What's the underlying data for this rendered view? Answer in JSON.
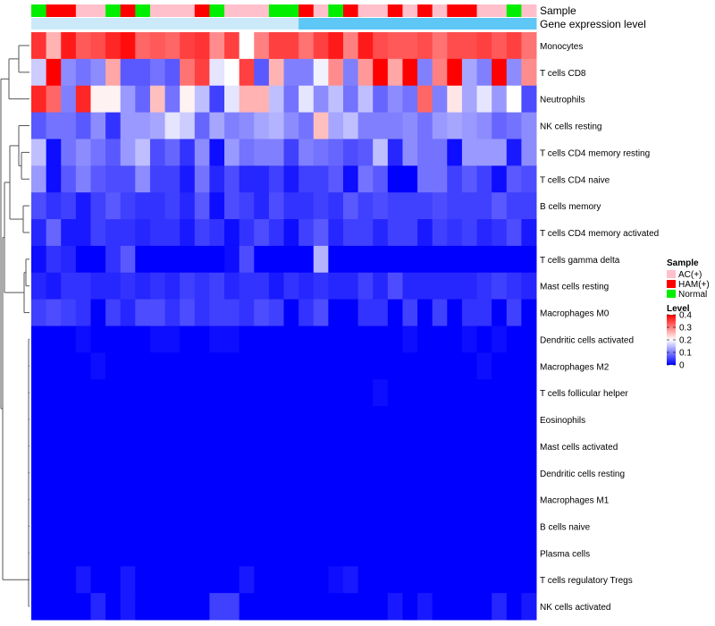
{
  "chart_data": {
    "type": "heatmap",
    "title": "",
    "rows": [
      "Monocytes",
      "T cells CD8",
      "Neutrophils",
      "NK cells resting",
      "T cells CD4 memory resting",
      "T cells CD4 naive",
      "B cells memory",
      "T cells CD4 memory activated",
      "T cells gamma delta",
      "Mast cells resting",
      "Macrophages M0",
      "Dendritic cells activated",
      "Macrophages M2",
      "T cells follicular helper",
      "Eosinophils",
      "Mast cells activated",
      "Dendritic cells resting",
      "Macrophages M1",
      "B cells naive",
      "Plasma cells",
      "T cells regulatory  Tregs",
      "NK cells activated"
    ],
    "annotation_tracks": [
      {
        "name": "Sample",
        "values": [
          "Normal",
          "HAM(+)",
          "HAM(+)",
          "AC(+)",
          "AC(+)",
          "Normal",
          "HAM(+)",
          "Normal",
          "AC(+)",
          "AC(+)",
          "AC(+)",
          "HAM(+)",
          "Normal",
          "AC(+)",
          "AC(+)",
          "AC(+)",
          "Normal",
          "Normal",
          "HAM(+)",
          "AC(+)",
          "Normal",
          "HAM(+)",
          "AC(+)",
          "AC(+)",
          "HAM(+)",
          "AC(+)",
          "HAM(+)",
          "AC(+)",
          "HAM(+)",
          "HAM(+)",
          "AC(+)",
          "AC(+)",
          "Normal",
          "AC(+)"
        ]
      },
      {
        "name": "Gene expression level",
        "values": [
          "low",
          "low",
          "low",
          "low",
          "low",
          "low",
          "low",
          "low",
          "low",
          "low",
          "low",
          "low",
          "low",
          "low",
          "low",
          "low",
          "low",
          "low",
          "high",
          "high",
          "high",
          "high",
          "high",
          "high",
          "high",
          "high",
          "high",
          "high",
          "high",
          "high",
          "high",
          "high",
          "high",
          "high"
        ]
      }
    ],
    "matrix": [
      [
        0.36,
        0.26,
        0.38,
        0.33,
        0.34,
        0.37,
        0.39,
        0.32,
        0.33,
        0.32,
        0.35,
        0.36,
        0.29,
        0.35,
        0.2,
        0.3,
        0.35,
        0.35,
        0.31,
        0.35,
        0.38,
        0.3,
        0.38,
        0.34,
        0.33,
        0.33,
        0.34,
        0.31,
        0.34,
        0.34,
        0.35,
        0.33,
        0.35,
        0.31
      ],
      [
        0.16,
        0.4,
        0.11,
        0.09,
        0.11,
        0.27,
        0.07,
        0.07,
        0.09,
        0.07,
        0.31,
        0.35,
        0.18,
        0.2,
        0.35,
        0.07,
        0.26,
        0.1,
        0.1,
        0.19,
        0.29,
        0.1,
        0.28,
        0.42,
        0.27,
        0.41,
        0.1,
        0.3,
        0.41,
        0.13,
        0.1,
        0.4,
        0.11,
        0.29
      ],
      [
        0.37,
        0.32,
        0.1,
        0.37,
        0.21,
        0.21,
        0.12,
        0.08,
        0.25,
        0.09,
        0.21,
        0.15,
        0.05,
        0.18,
        0.26,
        0.26,
        0.15,
        0.09,
        0.18,
        0.11,
        0.15,
        0.09,
        0.15,
        0.08,
        0.11,
        0.09,
        0.32,
        0.1,
        0.22,
        0.13,
        0.18,
        0.12,
        0.2,
        0.06
      ],
      [
        0.07,
        0.09,
        0.09,
        0.07,
        0.11,
        0.04,
        0.12,
        0.12,
        0.13,
        0.18,
        0.16,
        0.08,
        0.13,
        0.1,
        0.11,
        0.13,
        0.14,
        0.11,
        0.09,
        0.25,
        0.13,
        0.15,
        0.1,
        0.1,
        0.1,
        0.11,
        0.09,
        0.12,
        0.13,
        0.12,
        0.11,
        0.08,
        0.09,
        0.11
      ],
      [
        0.15,
        0.01,
        0.09,
        0.11,
        0.09,
        0.07,
        0.12,
        0.15,
        0.06,
        0.08,
        0.04,
        0.11,
        0.01,
        0.12,
        0.09,
        0.1,
        0.1,
        0.05,
        0.1,
        0.09,
        0.08,
        0.06,
        0.07,
        0.15,
        0.03,
        0.11,
        0.09,
        0.09,
        0.01,
        0.12,
        0.12,
        0.12,
        0.02,
        0.11
      ],
      [
        0.12,
        0.01,
        0.07,
        0.1,
        0.07,
        0.06,
        0.06,
        0.11,
        0.05,
        0.05,
        0.02,
        0.09,
        0.03,
        0.06,
        0.03,
        0.03,
        0.05,
        0.02,
        0.05,
        0.05,
        0.07,
        0.01,
        0.09,
        0.07,
        0.0,
        0.0,
        0.09,
        0.09,
        0.05,
        0.07,
        0.05,
        0.01,
        0.07,
        0.06
      ],
      [
        0.06,
        0.04,
        0.05,
        0.02,
        0.05,
        0.07,
        0.05,
        0.04,
        0.04,
        0.05,
        0.03,
        0.07,
        0.01,
        0.06,
        0.05,
        0.03,
        0.06,
        0.04,
        0.04,
        0.05,
        0.04,
        0.07,
        0.05,
        0.06,
        0.05,
        0.05,
        0.05,
        0.06,
        0.05,
        0.05,
        0.05,
        0.07,
        0.05,
        0.05
      ],
      [
        0.03,
        0.08,
        0.02,
        0.02,
        0.05,
        0.04,
        0.04,
        0.03,
        0.04,
        0.04,
        0.02,
        0.05,
        0.04,
        0.01,
        0.04,
        0.06,
        0.04,
        0.01,
        0.05,
        0.07,
        0.03,
        0.05,
        0.05,
        0.03,
        0.05,
        0.05,
        0.02,
        0.05,
        0.04,
        0.05,
        0.03,
        0.04,
        0.06,
        0.02
      ],
      [
        0.01,
        0.04,
        0.03,
        0.0,
        0.0,
        0.04,
        0.07,
        0.0,
        0.0,
        0.0,
        0.0,
        0.0,
        0.0,
        0.01,
        0.06,
        0.0,
        0.0,
        0.0,
        0.0,
        0.14,
        0.0,
        0.0,
        0.0,
        0.0,
        0.0,
        0.0,
        0.0,
        0.0,
        0.0,
        0.0,
        0.0,
        0.0,
        0.0,
        0.0
      ],
      [
        0.03,
        0.02,
        0.04,
        0.04,
        0.03,
        0.03,
        0.04,
        0.03,
        0.04,
        0.03,
        0.05,
        0.04,
        0.05,
        0.03,
        0.04,
        0.04,
        0.02,
        0.04,
        0.03,
        0.04,
        0.03,
        0.03,
        0.05,
        0.03,
        0.06,
        0.03,
        0.03,
        0.03,
        0.03,
        0.03,
        0.04,
        0.05,
        0.04,
        0.03
      ],
      [
        0.05,
        0.06,
        0.05,
        0.04,
        0.0,
        0.05,
        0.03,
        0.06,
        0.06,
        0.04,
        0.06,
        0.04,
        0.05,
        0.05,
        0.04,
        0.06,
        0.05,
        0.0,
        0.04,
        0.06,
        0.0,
        0.0,
        0.04,
        0.04,
        0.0,
        0.05,
        0.0,
        0.05,
        0.0,
        0.04,
        0.04,
        0.0,
        0.05,
        0.0
      ],
      [
        0.0,
        0.0,
        0.0,
        0.01,
        0.0,
        0.0,
        0.0,
        0.0,
        0.01,
        0.01,
        0.0,
        0.0,
        0.01,
        0.01,
        0.0,
        0.0,
        0.0,
        0.0,
        0.0,
        0.0,
        0.0,
        0.0,
        0.0,
        0.0,
        0.0,
        0.01,
        0.0,
        0.0,
        0.0,
        0.01,
        0.0,
        0.01,
        0.0,
        0.0
      ],
      [
        0.0,
        0.0,
        0.0,
        0.0,
        0.01,
        0.0,
        0.0,
        0.0,
        0.0,
        0.0,
        0.0,
        0.0,
        0.0,
        0.0,
        0.0,
        0.0,
        0.0,
        0.0,
        0.0,
        0.0,
        0.0,
        0.0,
        0.0,
        0.0,
        0.0,
        0.0,
        0.0,
        0.0,
        0.0,
        0.0,
        0.01,
        0.0,
        0.0,
        0.0
      ],
      [
        0.0,
        0.0,
        0.0,
        0.0,
        0.0,
        0.0,
        0.0,
        0.0,
        0.0,
        0.0,
        0.0,
        0.0,
        0.0,
        0.0,
        0.0,
        0.0,
        0.0,
        0.0,
        0.0,
        0.0,
        0.0,
        0.0,
        0.0,
        0.01,
        0.0,
        0.0,
        0.0,
        0.0,
        0.0,
        0.0,
        0.0,
        0.0,
        0.0,
        0.0
      ],
      [
        0.0,
        0.0,
        0.0,
        0.0,
        0.0,
        0.0,
        0.0,
        0.0,
        0.0,
        0.0,
        0.0,
        0.0,
        0.0,
        0.0,
        0.0,
        0.0,
        0.0,
        0.0,
        0.0,
        0.0,
        0.0,
        0.0,
        0.0,
        0.0,
        0.0,
        0.0,
        0.0,
        0.0,
        0.0,
        0.0,
        0.0,
        0.0,
        0.0,
        0.0
      ],
      [
        0.0,
        0.0,
        0.0,
        0.0,
        0.0,
        0.0,
        0.0,
        0.0,
        0.0,
        0.0,
        0.0,
        0.0,
        0.0,
        0.0,
        0.0,
        0.0,
        0.0,
        0.0,
        0.0,
        0.0,
        0.0,
        0.0,
        0.0,
        0.0,
        0.0,
        0.0,
        0.0,
        0.0,
        0.0,
        0.0,
        0.0,
        0.0,
        0.0,
        0.0
      ],
      [
        0.0,
        0.0,
        0.0,
        0.0,
        0.0,
        0.0,
        0.0,
        0.0,
        0.0,
        0.0,
        0.0,
        0.0,
        0.0,
        0.0,
        0.0,
        0.0,
        0.0,
        0.0,
        0.0,
        0.0,
        0.0,
        0.0,
        0.0,
        0.0,
        0.0,
        0.0,
        0.0,
        0.0,
        0.0,
        0.0,
        0.0,
        0.0,
        0.0,
        0.0
      ],
      [
        0.0,
        0.0,
        0.0,
        0.0,
        0.0,
        0.0,
        0.0,
        0.0,
        0.0,
        0.0,
        0.0,
        0.0,
        0.0,
        0.0,
        0.0,
        0.0,
        0.0,
        0.0,
        0.0,
        0.0,
        0.0,
        0.0,
        0.0,
        0.0,
        0.0,
        0.0,
        0.0,
        0.0,
        0.0,
        0.0,
        0.0,
        0.0,
        0.0,
        0.0
      ],
      [
        0.0,
        0.0,
        0.0,
        0.0,
        0.0,
        0.0,
        0.0,
        0.0,
        0.0,
        0.0,
        0.0,
        0.0,
        0.0,
        0.0,
        0.0,
        0.0,
        0.0,
        0.0,
        0.0,
        0.0,
        0.0,
        0.0,
        0.0,
        0.0,
        0.0,
        0.0,
        0.0,
        0.0,
        0.0,
        0.0,
        0.0,
        0.0,
        0.0,
        0.0
      ],
      [
        0.0,
        0.0,
        0.0,
        0.0,
        0.0,
        0.0,
        0.0,
        0.0,
        0.0,
        0.0,
        0.0,
        0.0,
        0.0,
        0.0,
        0.0,
        0.0,
        0.0,
        0.0,
        0.0,
        0.0,
        0.0,
        0.0,
        0.0,
        0.0,
        0.0,
        0.0,
        0.0,
        0.0,
        0.0,
        0.0,
        0.0,
        0.0,
        0.0,
        0.0
      ],
      [
        0.0,
        0.0,
        0.0,
        0.02,
        0.0,
        0.0,
        0.02,
        0.0,
        0.0,
        0.0,
        0.0,
        0.0,
        0.0,
        0.0,
        0.02,
        0.0,
        0.0,
        0.0,
        0.0,
        0.0,
        0.01,
        0.02,
        0.0,
        0.0,
        0.0,
        0.0,
        0.0,
        0.0,
        0.0,
        0.0,
        0.0,
        0.0,
        0.0,
        0.0
      ],
      [
        0.0,
        0.0,
        0.0,
        0.0,
        0.03,
        0.0,
        0.02,
        0.0,
        0.0,
        0.0,
        0.0,
        0.0,
        0.05,
        0.05,
        0.0,
        0.0,
        0.0,
        0.0,
        0.0,
        0.0,
        0.0,
        0.0,
        0.0,
        0.0,
        0.02,
        0.0,
        0.02,
        0.0,
        0.0,
        0.0,
        0.0,
        0.03,
        0.0,
        0.02
      ]
    ],
    "legend_sample": {
      "title": "Sample",
      "items": [
        {
          "label": "AC(+)",
          "color": "#ffc0cb"
        },
        {
          "label": "HAM(+)",
          "color": "#ff0000"
        },
        {
          "label": "Normal",
          "color": "#00ee00"
        }
      ]
    },
    "legend_level": {
      "title": "Level",
      "ticks": [
        {
          "value": 0.4,
          "label": "0.4"
        },
        {
          "value": 0.3,
          "label": "0.3"
        },
        {
          "value": 0.2,
          "label": "0.2"
        },
        {
          "value": 0.1,
          "label": "0.1"
        },
        {
          "value": 0,
          "label": "0"
        }
      ],
      "min": 0,
      "mid": 0.2,
      "max": 0.4
    },
    "colors": {
      "low": "#0000ff",
      "mid": "#ffffff",
      "high": "#ff0000",
      "expr_low": "#cce9fa",
      "expr_high": "#5ec7f5",
      "dendrogram": "#555555"
    }
  }
}
